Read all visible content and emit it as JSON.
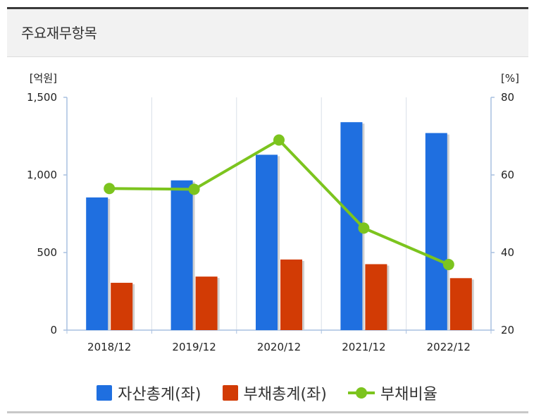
{
  "header": {
    "title": "주요재무항목"
  },
  "units": {
    "left": "[억원]",
    "right": "[%]"
  },
  "chart_data": {
    "type": "bar",
    "categories": [
      "2018/12",
      "2019/12",
      "2020/12",
      "2021/12",
      "2022/12"
    ],
    "series": [
      {
        "name": "자산총계(좌)",
        "type": "bar",
        "axis": "left",
        "color": "#1f6fe0",
        "values": [
          855,
          965,
          1130,
          1340,
          1270
        ]
      },
      {
        "name": "부채총계(좌)",
        "type": "bar",
        "axis": "left",
        "color": "#d23b05",
        "values": [
          305,
          345,
          455,
          425,
          335
        ]
      },
      {
        "name": "부채비율",
        "type": "line",
        "axis": "right",
        "color": "#7cc41e",
        "values": [
          56.5,
          56.3,
          69.0,
          46.3,
          36.9
        ]
      }
    ],
    "left_axis": {
      "ylim": [
        0,
        1500
      ],
      "ticks": [
        0,
        500,
        1000,
        1500
      ],
      "tick_labels": [
        "0",
        "500",
        "1,000",
        "1,500"
      ]
    },
    "right_axis": {
      "ylim": [
        20,
        80
      ],
      "ticks": [
        20,
        40,
        60,
        80
      ],
      "tick_labels": [
        "20",
        "40",
        "60",
        "80"
      ]
    },
    "grid": "vertical",
    "legend": "bottom"
  },
  "legend": {
    "assets_label": "자산총계(좌)",
    "liabilities_label": "부채총계(좌)",
    "ratio_label": "부채비율"
  }
}
